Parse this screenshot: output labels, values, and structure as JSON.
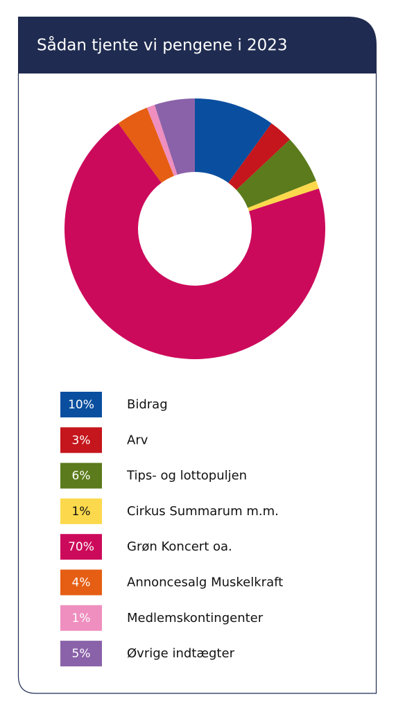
{
  "chart_data": {
    "type": "donut",
    "title": "Sådan tjente vi pengene i 2023",
    "categories": [
      "Bidrag",
      "Arv",
      "Tips- og lottopuljen",
      "Cirkus Summarum m.m.",
      "Grøn Koncert oa.",
      "Annoncesalg Muskelkraft",
      "Medlemskontingenter",
      "Øvrige indtægter"
    ],
    "values": [
      10,
      3,
      6,
      1,
      70,
      4,
      1,
      5
    ],
    "value_labels": [
      "10%",
      "3%",
      "6%",
      "1%",
      "70%",
      "4%",
      "1%",
      "5%"
    ],
    "colors": [
      "#0a4f9f",
      "#c4161c",
      "#5b7b1c",
      "#fcd94c",
      "#cc0a5b",
      "#e55e13",
      "#ef8fbf",
      "#8a62a9"
    ]
  }
}
